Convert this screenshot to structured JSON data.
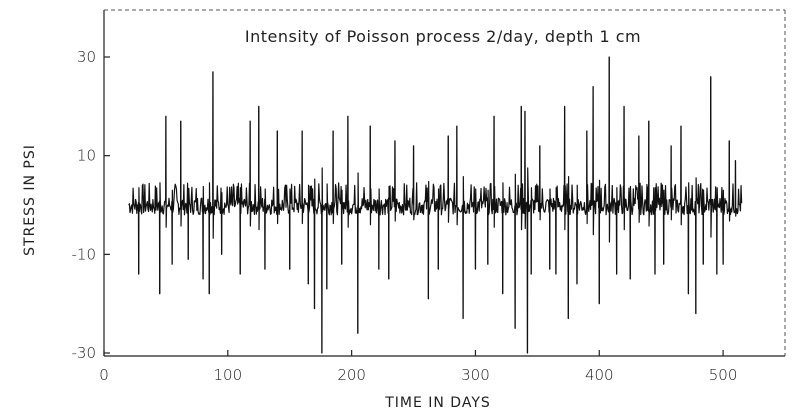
{
  "chart_data": {
    "type": "line",
    "title": "Intensity of Poisson process 2/day, depth 1 cm",
    "xlabel": "TIME IN DAYS",
    "ylabel": "STRESS IN PSI",
    "xlim": [
      0,
      550
    ],
    "ylim": [
      -30,
      30
    ],
    "xticks": [
      0,
      100,
      200,
      300,
      400,
      500
    ],
    "yticks": [
      -30,
      -10,
      10,
      30
    ],
    "xtick_labels": [
      "0",
      "100",
      "200",
      "300",
      "400",
      "500"
    ],
    "ytick_labels": [
      "-30",
      "-10",
      "10",
      "30"
    ],
    "grid": false,
    "legend": "none",
    "x_range": [
      20,
      515
    ],
    "baseline": 0,
    "spikes": [
      {
        "x": 28,
        "y": -14
      },
      {
        "x": 45,
        "y": -18
      },
      {
        "x": 50,
        "y": 18
      },
      {
        "x": 55,
        "y": -12
      },
      {
        "x": 62,
        "y": 17
      },
      {
        "x": 68,
        "y": -11
      },
      {
        "x": 80,
        "y": -15
      },
      {
        "x": 85,
        "y": -18
      },
      {
        "x": 88,
        "y": 27
      },
      {
        "x": 95,
        "y": -10
      },
      {
        "x": 110,
        "y": -14
      },
      {
        "x": 118,
        "y": 17
      },
      {
        "x": 125,
        "y": 20
      },
      {
        "x": 130,
        "y": -13
      },
      {
        "x": 140,
        "y": 15
      },
      {
        "x": 150,
        "y": -13
      },
      {
        "x": 160,
        "y": 15
      },
      {
        "x": 165,
        "y": -16
      },
      {
        "x": 170,
        "y": -21
      },
      {
        "x": 176,
        "y": -30
      },
      {
        "x": 180,
        "y": -17
      },
      {
        "x": 185,
        "y": 15
      },
      {
        "x": 192,
        "y": -12
      },
      {
        "x": 197,
        "y": 18
      },
      {
        "x": 205,
        "y": -26
      },
      {
        "x": 215,
        "y": 16
      },
      {
        "x": 222,
        "y": -13
      },
      {
        "x": 230,
        "y": -15
      },
      {
        "x": 235,
        "y": 13
      },
      {
        "x": 250,
        "y": 12
      },
      {
        "x": 262,
        "y": -19
      },
      {
        "x": 270,
        "y": -13
      },
      {
        "x": 278,
        "y": 14
      },
      {
        "x": 285,
        "y": 16
      },
      {
        "x": 290,
        "y": -23
      },
      {
        "x": 300,
        "y": -13
      },
      {
        "x": 310,
        "y": -12
      },
      {
        "x": 315,
        "y": 18
      },
      {
        "x": 322,
        "y": -18
      },
      {
        "x": 332,
        "y": -25
      },
      {
        "x": 337,
        "y": 20
      },
      {
        "x": 340,
        "y": 19
      },
      {
        "x": 342,
        "y": -30
      },
      {
        "x": 345,
        "y": -14
      },
      {
        "x": 352,
        "y": 12
      },
      {
        "x": 360,
        "y": -13
      },
      {
        "x": 365,
        "y": -14
      },
      {
        "x": 372,
        "y": 20
      },
      {
        "x": 375,
        "y": -23
      },
      {
        "x": 382,
        "y": -16
      },
      {
        "x": 390,
        "y": 15
      },
      {
        "x": 395,
        "y": 24
      },
      {
        "x": 400,
        "y": -20
      },
      {
        "x": 408,
        "y": 30
      },
      {
        "x": 414,
        "y": -14
      },
      {
        "x": 420,
        "y": 20
      },
      {
        "x": 425,
        "y": -15
      },
      {
        "x": 432,
        "y": 14
      },
      {
        "x": 440,
        "y": 17
      },
      {
        "x": 445,
        "y": -14
      },
      {
        "x": 452,
        "y": -12
      },
      {
        "x": 458,
        "y": 12
      },
      {
        "x": 466,
        "y": 16
      },
      {
        "x": 472,
        "y": -18
      },
      {
        "x": 478,
        "y": -22
      },
      {
        "x": 484,
        "y": -12
      },
      {
        "x": 490,
        "y": 26
      },
      {
        "x": 495,
        "y": -14
      },
      {
        "x": 500,
        "y": -12
      },
      {
        "x": 505,
        "y": 13
      },
      {
        "x": 510,
        "y": 9
      }
    ]
  }
}
